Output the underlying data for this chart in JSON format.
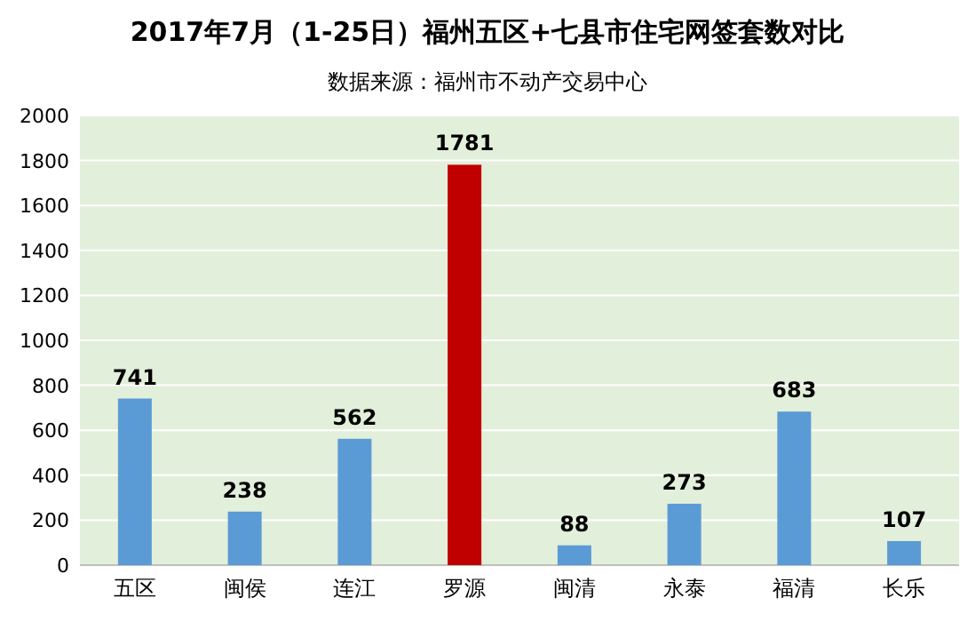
{
  "chart_data": {
    "type": "bar",
    "title": "2017年7月（1-25日）福州五区+七县市住宅网签套数对比",
    "subtitle": "数据来源：福州市不动产交易中心",
    "categories": [
      "五区",
      "闽侯",
      "连江",
      "罗源",
      "闽清",
      "永泰",
      "福清",
      "长乐"
    ],
    "values": [
      741,
      238,
      562,
      1781,
      88,
      273,
      683,
      107
    ],
    "colors": [
      "#5b9bd5",
      "#5b9bd5",
      "#5b9bd5",
      "#c00000",
      "#5b9bd5",
      "#5b9bd5",
      "#5b9bd5",
      "#5b9bd5"
    ],
    "ylim": [
      0,
      2000
    ],
    "yticks": [
      0,
      200,
      400,
      600,
      800,
      1000,
      1200,
      1400,
      1600,
      1800,
      2000
    ],
    "grid": "y",
    "data_labels": true
  }
}
